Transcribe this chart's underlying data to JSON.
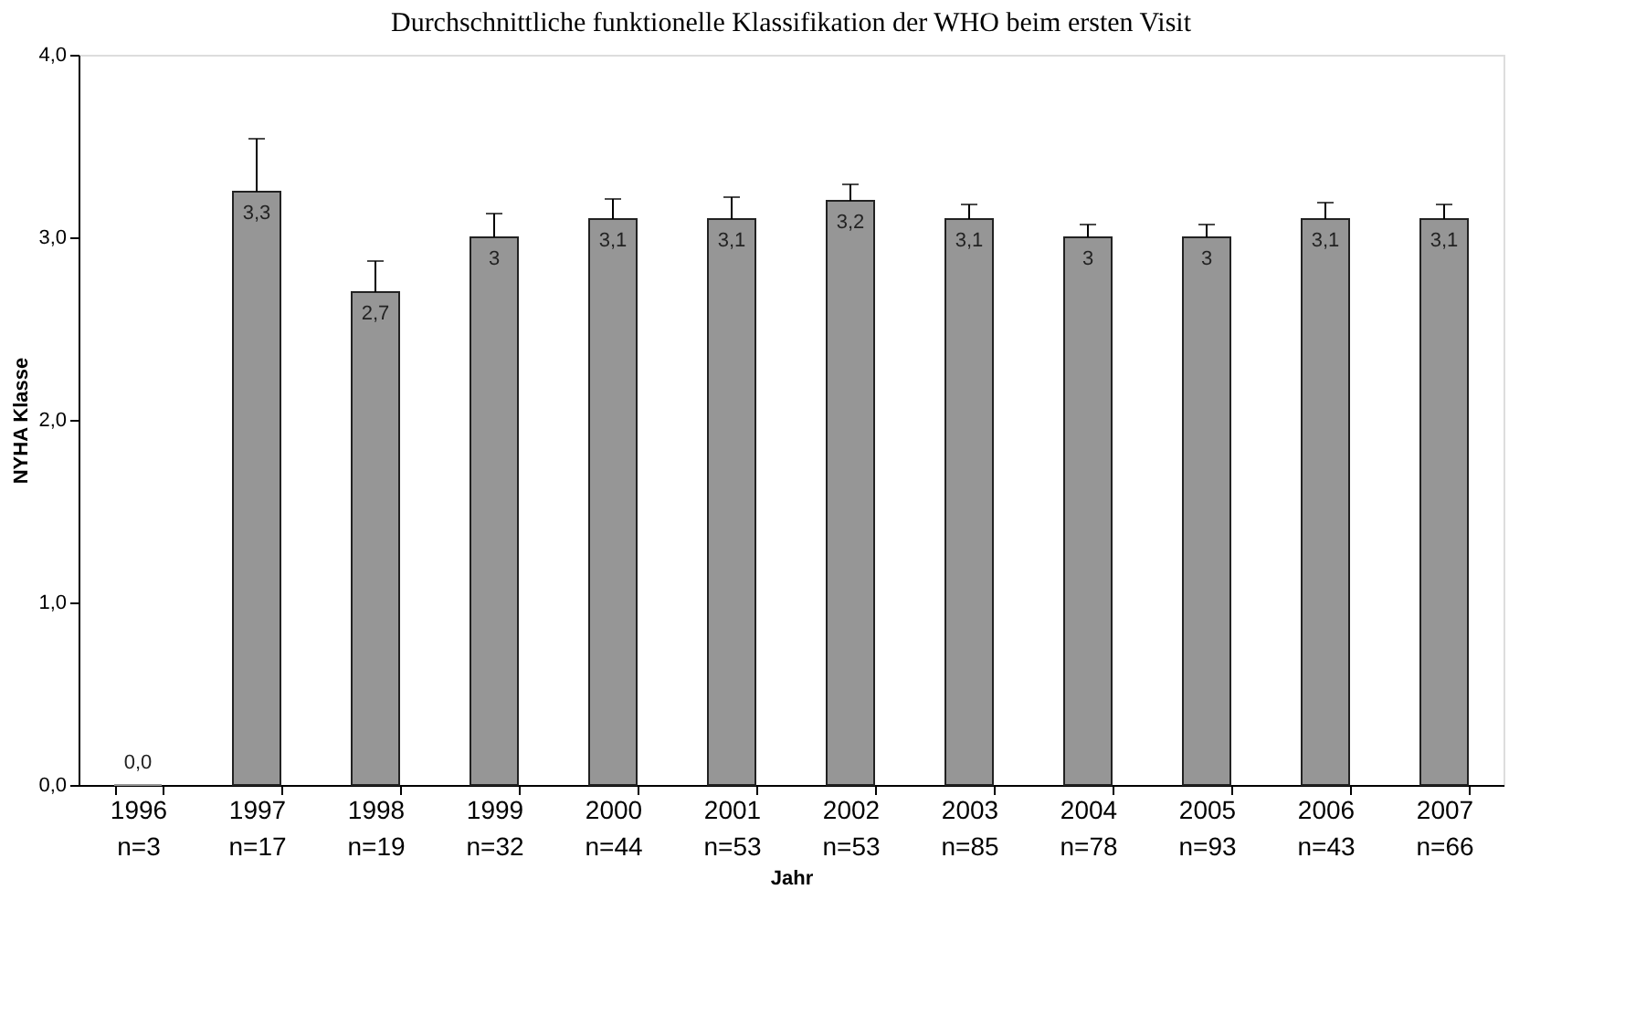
{
  "chart_data": {
    "type": "bar",
    "title": "Durchschnittliche funktionelle Klassifikation der WHO beim ersten Visit",
    "xlabel": "Jahr",
    "ylabel": "NYHA Klasse",
    "categories": [
      "1996\nn=3",
      "1997\nn=17",
      "1998\nn=19",
      "1999\nn=32",
      "2000\nn=44",
      "2001\nn=53",
      "2002\nn=53",
      "2003\nn=85",
      "2004\nn=78",
      "2005\nn=93",
      "2006\nn=43",
      "2007\nn=66"
    ],
    "values": [
      0.0,
      3.25,
      2.7,
      3.0,
      3.1,
      3.1,
      3.2,
      3.1,
      3.0,
      3.0,
      3.1,
      3.1
    ],
    "value_labels": [
      "0,0",
      "3,3",
      "2,7",
      "3",
      "3,1",
      "3,1",
      "3,2",
      "3,1",
      "3",
      "3",
      "3,1",
      "3,1"
    ],
    "errors": [
      null,
      [
        3.25,
        3.54
      ],
      [
        2.7,
        2.87
      ],
      [
        3.0,
        3.13
      ],
      [
        3.1,
        3.21
      ],
      [
        3.1,
        3.22
      ],
      [
        3.2,
        3.29
      ],
      [
        3.1,
        3.18
      ],
      [
        3.0,
        3.07
      ],
      [
        3.0,
        3.07
      ],
      [
        3.1,
        3.19
      ],
      [
        3.1,
        3.18
      ]
    ],
    "color": "#969696",
    "ylim": [
      0,
      4
    ],
    "yticks": [
      {
        "value": 0,
        "label": "0,0"
      },
      {
        "value": 1,
        "label": "1,0"
      },
      {
        "value": 2,
        "label": "2,0"
      },
      {
        "value": 3,
        "label": "3,0"
      },
      {
        "value": 4,
        "label": "4,0"
      }
    ],
    "grid": false,
    "legend": false
  }
}
